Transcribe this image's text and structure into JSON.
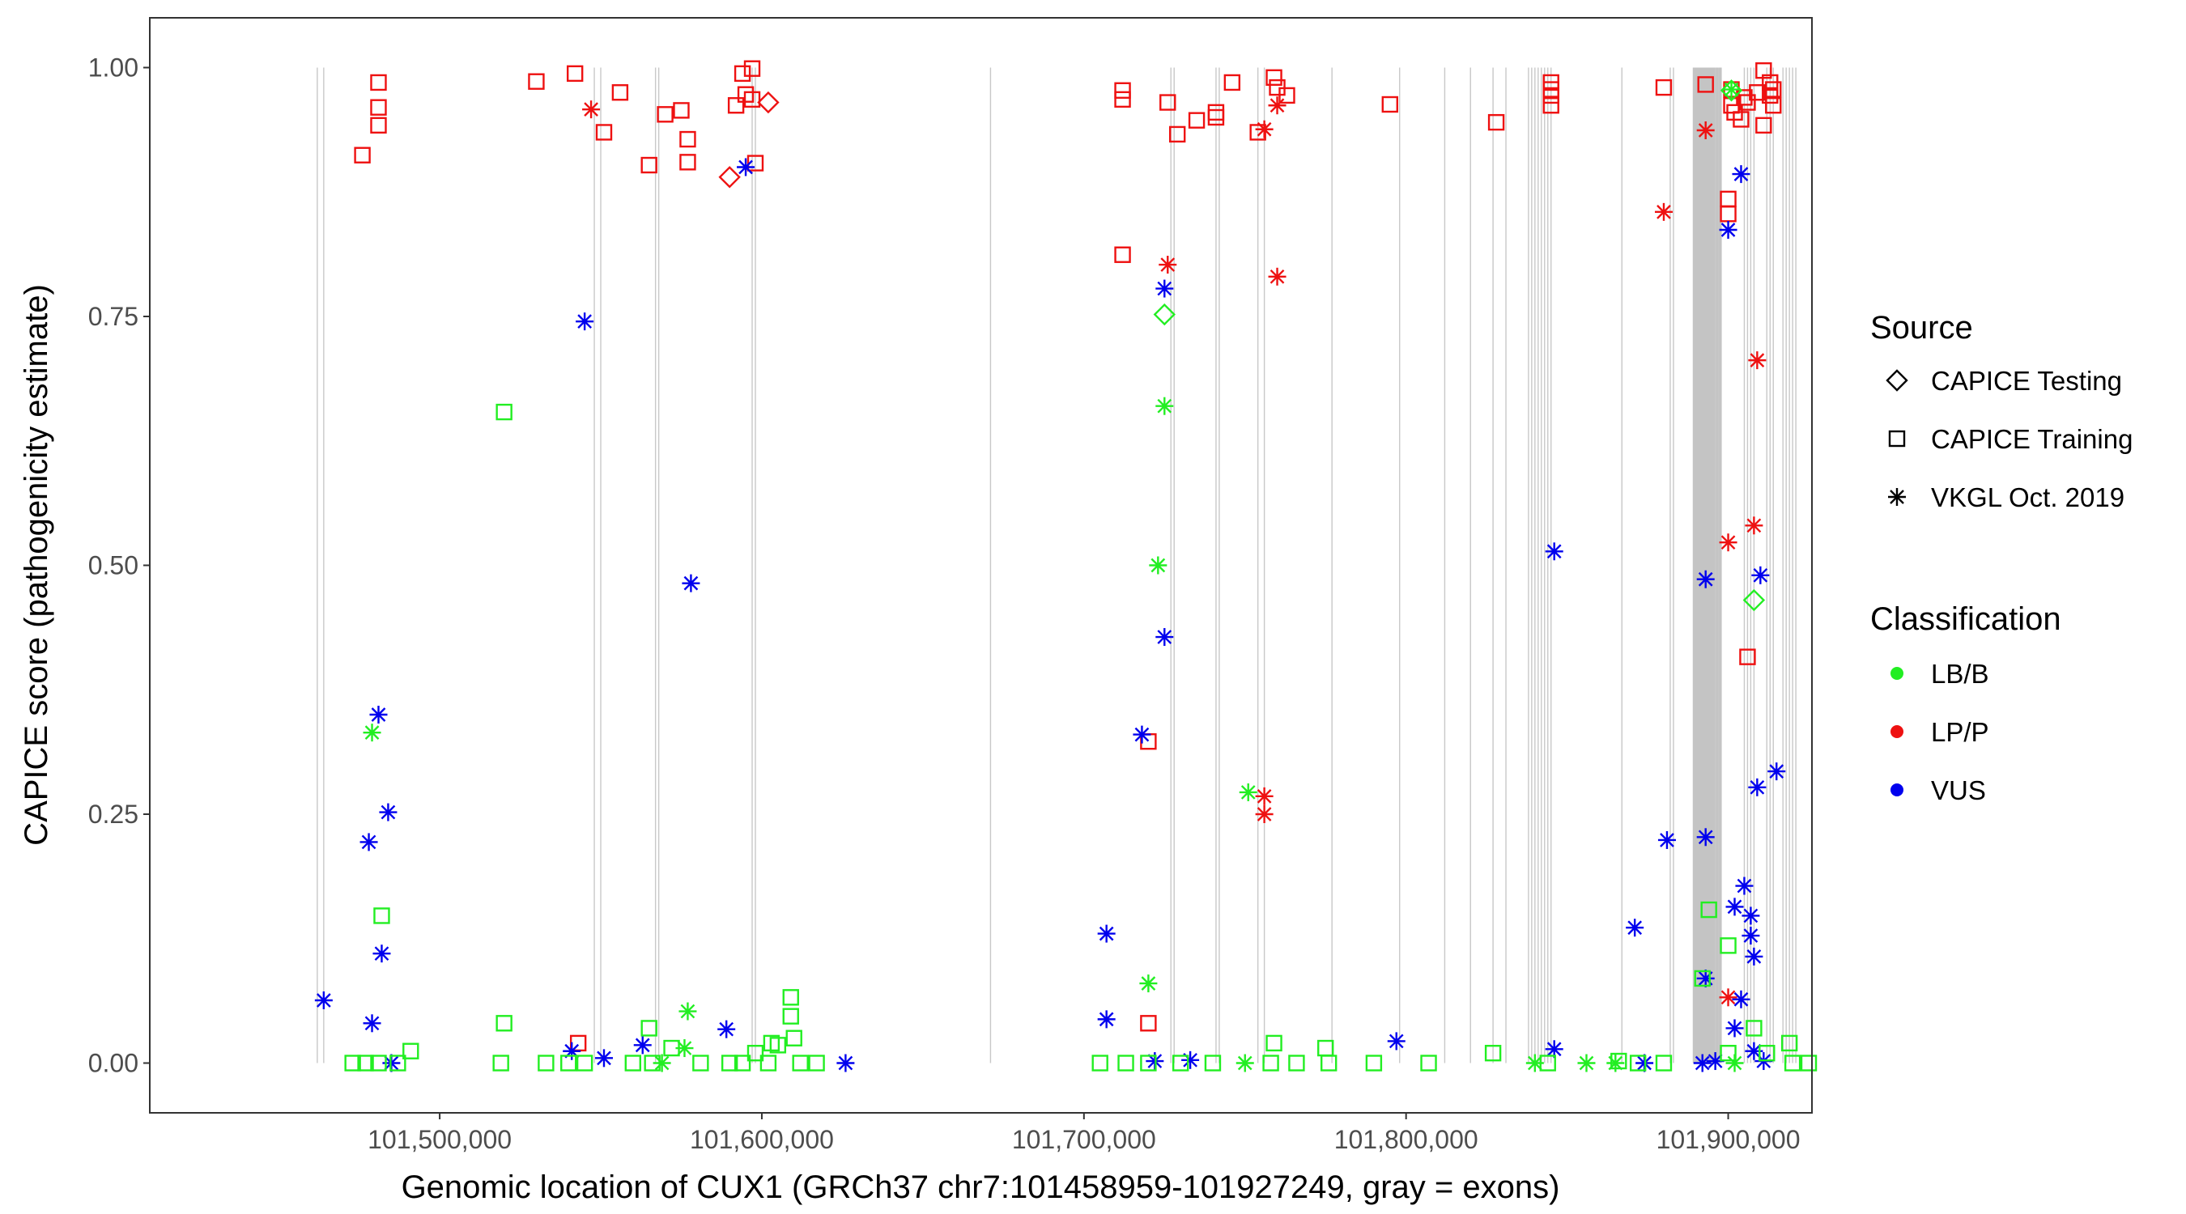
{
  "chart_data": {
    "type": "scatter",
    "title": "",
    "xlabel": "Genomic location of CUX1 (GRCh37 chr7:101458959-101927249, gray = exons)",
    "ylabel": "CAPICE score (pathogenicity estimate)",
    "xlim": [
      101410000,
      101926000
    ],
    "ylim": [
      -0.05,
      1.05
    ],
    "x_ticks": [
      101500000,
      101600000,
      101700000,
      101800000,
      101900000
    ],
    "x_tick_labels": [
      "101,500,000",
      "101,600,000",
      "101,700,000",
      "101,800,000",
      "101,900,000"
    ],
    "y_ticks": [
      0,
      0.25,
      0.5,
      0.75,
      1
    ],
    "y_tick_labels": [
      "0.00",
      "0.25",
      "0.50",
      "0.75",
      "1.00"
    ],
    "grid": false,
    "legend_position": "right",
    "colors": {
      "LB/B": "#22ee22",
      "LP/P": "#ee1111",
      "VUS": "#0000ee",
      "exon": "#c8c8c8",
      "exon_block": "#c4c4c4"
    },
    "exon_lines": [
      101462000,
      101464000,
      101548000,
      101550000,
      101567000,
      101568000,
      101597000,
      101598000,
      101671000,
      101727000,
      101728000,
      101741000,
      101742000,
      101754000,
      101756000,
      101777000,
      101798000,
      101812000,
      101820000,
      101827000,
      101831000,
      101838000,
      101839000,
      101840000,
      101841000,
      101842000,
      101843000,
      101844000,
      101845000,
      101867000,
      101882000,
      101883000,
      101896000,
      101897000,
      101905000,
      101906000,
      101907000,
      101908000,
      101912000,
      101913000,
      101914000,
      101917000,
      101918000,
      101919000,
      101920000,
      101921000
    ],
    "exon_block": [
      101889000,
      101898000
    ],
    "legends": [
      {
        "title": "Source",
        "entries": [
          {
            "label": "CAPICE Testing",
            "shape": "diamond"
          },
          {
            "label": "CAPICE Training",
            "shape": "square"
          },
          {
            "label": "VKGL Oct. 2019",
            "shape": "asterisk"
          }
        ]
      },
      {
        "title": "Classification",
        "entries": [
          {
            "label": "LB/B",
            "color": "#22ee22"
          },
          {
            "label": "LP/P",
            "color": "#ee1111"
          },
          {
            "label": "VUS",
            "color": "#0000ee"
          }
        ]
      }
    ],
    "series": [
      {
        "source": "CAPICE Training",
        "class": "LP/P",
        "points": [
          [
            101476000,
            0.912
          ],
          [
            101481000,
            0.985
          ],
          [
            101481000,
            0.96
          ],
          [
            101481000,
            0.942
          ],
          [
            101530000,
            0.986
          ],
          [
            101542000,
            0.994
          ],
          [
            101551000,
            0.935
          ],
          [
            101556000,
            0.975
          ],
          [
            101565000,
            0.902
          ],
          [
            101570000,
            0.953
          ],
          [
            101575000,
            0.957
          ],
          [
            101577000,
            0.928
          ],
          [
            101577000,
            0.905
          ],
          [
            101592000,
            0.962
          ],
          [
            101594000,
            0.994
          ],
          [
            101597000,
            0.999
          ],
          [
            101597000,
            0.968
          ],
          [
            101595000,
            0.973
          ],
          [
            101598000,
            0.904
          ],
          [
            101543000,
            0.02
          ],
          [
            101712000,
            0.977
          ],
          [
            101712000,
            0.968
          ],
          [
            101712000,
            0.812
          ],
          [
            101726000,
            0.965
          ],
          [
            101729000,
            0.933
          ],
          [
            101735000,
            0.947
          ],
          [
            101741000,
            0.955
          ],
          [
            101741000,
            0.95
          ],
          [
            101746000,
            0.985
          ],
          [
            101754000,
            0.935
          ],
          [
            101759000,
            0.99
          ],
          [
            101760000,
            0.98
          ],
          [
            101763000,
            0.972
          ],
          [
            101795000,
            0.963
          ],
          [
            101828000,
            0.945
          ],
          [
            101845000,
            0.985
          ],
          [
            101845000,
            0.978
          ],
          [
            101845000,
            0.972
          ],
          [
            101845000,
            0.962
          ],
          [
            101880000,
            0.98
          ],
          [
            101893000,
            0.983
          ],
          [
            101900000,
            0.868
          ],
          [
            101900000,
            0.853
          ],
          [
            101901000,
            0.978
          ],
          [
            101901000,
            0.962
          ],
          [
            101902000,
            0.955
          ],
          [
            101904000,
            0.948
          ],
          [
            101905000,
            0.97
          ],
          [
            101906000,
            0.965
          ],
          [
            101909000,
            0.975
          ],
          [
            101911000,
            0.942
          ],
          [
            101911000,
            0.997
          ],
          [
            101913000,
            0.985
          ],
          [
            101913000,
            0.972
          ],
          [
            101914000,
            0.962
          ],
          [
            101914000,
            0.978
          ],
          [
            101906000,
            0.408
          ],
          [
            101720000,
            0.323
          ],
          [
            101720000,
            0.04
          ]
        ]
      },
      {
        "source": "VKGL Oct. 2019",
        "class": "LP/P",
        "points": [
          [
            101547000,
            0.958
          ],
          [
            101726000,
            0.802
          ],
          [
            101756000,
            0.938
          ],
          [
            101760000,
            0.962
          ],
          [
            101760000,
            0.79
          ],
          [
            101756000,
            0.268
          ],
          [
            101756000,
            0.25
          ],
          [
            101880000,
            0.855
          ],
          [
            101893000,
            0.937
          ],
          [
            101909000,
            0.706
          ],
          [
            101908000,
            0.54
          ],
          [
            101900000,
            0.523
          ],
          [
            101900000,
            0.066
          ]
        ]
      },
      {
        "source": "CAPICE Testing",
        "class": "LP/P",
        "points": [
          [
            101590000,
            0.89
          ],
          [
            101602000,
            0.965
          ]
        ]
      },
      {
        "source": "VKGL Oct. 2019",
        "class": "VUS",
        "points": [
          [
            101595000,
            0.9
          ],
          [
            101545000,
            0.745
          ],
          [
            101578000,
            0.482
          ],
          [
            101481000,
            0.35
          ],
          [
            101484000,
            0.252
          ],
          [
            101478000,
            0.222
          ],
          [
            101482000,
            0.11
          ],
          [
            101464000,
            0.063
          ],
          [
            101479000,
            0.04
          ],
          [
            101485000,
            0.0
          ],
          [
            101541000,
            0.012
          ],
          [
            101551000,
            0.005
          ],
          [
            101563000,
            0.018
          ],
          [
            101589000,
            0.034
          ],
          [
            101626000,
            0.0
          ],
          [
            101725000,
            0.778
          ],
          [
            101725000,
            0.428
          ],
          [
            101718000,
            0.33
          ],
          [
            101707000,
            0.13
          ],
          [
            101707000,
            0.044
          ],
          [
            101722000,
            0.002
          ],
          [
            101733000,
            0.003
          ],
          [
            101797000,
            0.022
          ],
          [
            101846000,
            0.514
          ],
          [
            101846000,
            0.014
          ],
          [
            101871000,
            0.136
          ],
          [
            101881000,
            0.224
          ],
          [
            101893000,
            0.227
          ],
          [
            101893000,
            0.486
          ],
          [
            101893000,
            0.085
          ],
          [
            101900000,
            0.837
          ],
          [
            101904000,
            0.893
          ],
          [
            101910000,
            0.49
          ],
          [
            101915000,
            0.293
          ],
          [
            101909000,
            0.277
          ],
          [
            101905000,
            0.178
          ],
          [
            101902000,
            0.157
          ],
          [
            101907000,
            0.148
          ],
          [
            101907000,
            0.128
          ],
          [
            101908000,
            0.107
          ],
          [
            101904000,
            0.064
          ],
          [
            101902000,
            0.035
          ],
          [
            101908000,
            0.012
          ],
          [
            101892000,
            0.0
          ],
          [
            101896000,
            0.002
          ],
          [
            101911000,
            0.002
          ],
          [
            101874000,
            0.0
          ]
        ]
      },
      {
        "source": "CAPICE Training",
        "class": "LB/B",
        "points": [
          [
            101520000,
            0.654
          ],
          [
            101482000,
            0.148
          ],
          [
            101520000,
            0.04
          ],
          [
            101565000,
            0.035
          ],
          [
            101572000,
            0.015
          ],
          [
            101609000,
            0.066
          ],
          [
            101609000,
            0.047
          ],
          [
            101610000,
            0.025
          ],
          [
            101603000,
            0.02
          ],
          [
            101605000,
            0.018
          ],
          [
            101598000,
            0.01
          ],
          [
            101473000,
            0.0
          ],
          [
            101477000,
            0.0
          ],
          [
            101481000,
            0.0
          ],
          [
            101487000,
            0.0
          ],
          [
            101491000,
            0.012
          ],
          [
            101519000,
            0.0
          ],
          [
            101533000,
            0.0
          ],
          [
            101540000,
            0.0
          ],
          [
            101545000,
            0.0
          ],
          [
            101560000,
            0.0
          ],
          [
            101566000,
            0.0
          ],
          [
            101581000,
            0.0
          ],
          [
            101590000,
            0.0
          ],
          [
            101594000,
            0.0
          ],
          [
            101602000,
            0.0
          ],
          [
            101612000,
            0.0
          ],
          [
            101617000,
            0.0
          ],
          [
            101705000,
            0.0
          ],
          [
            101713000,
            0.0
          ],
          [
            101720000,
            0.0
          ],
          [
            101730000,
            0.0
          ],
          [
            101740000,
            0.0
          ],
          [
            101758000,
            0.0
          ],
          [
            101766000,
            0.0
          ],
          [
            101776000,
            0.0
          ],
          [
            101790000,
            0.0
          ],
          [
            101807000,
            0.0
          ],
          [
            101827000,
            0.01
          ],
          [
            101844000,
            0.0
          ],
          [
            101866000,
            0.002
          ],
          [
            101872000,
            0.0
          ],
          [
            101880000,
            0.0
          ],
          [
            101894000,
            0.154
          ],
          [
            101900000,
            0.118
          ],
          [
            101892000,
            0.085
          ],
          [
            101908000,
            0.035
          ],
          [
            101919000,
            0.02
          ],
          [
            101900000,
            0.01
          ],
          [
            101912000,
            0.01
          ],
          [
            101920000,
            0.0
          ],
          [
            101925000,
            0.0
          ],
          [
            101759000,
            0.02
          ],
          [
            101775000,
            0.015
          ]
        ]
      },
      {
        "source": "VKGL Oct. 2019",
        "class": "LB/B",
        "points": [
          [
            101479000,
            0.332
          ],
          [
            101577000,
            0.052
          ],
          [
            101576000,
            0.015
          ],
          [
            101569000,
            0.0
          ],
          [
            101723000,
            0.5
          ],
          [
            101725000,
            0.66
          ],
          [
            101720000,
            0.08
          ],
          [
            101751000,
            0.272
          ],
          [
            101750000,
            0.0
          ],
          [
            101840000,
            0.0
          ],
          [
            101856000,
            0.0
          ],
          [
            101865000,
            0.0
          ],
          [
            101901000,
            0.978
          ],
          [
            101902000,
            0.0
          ]
        ]
      },
      {
        "source": "CAPICE Testing",
        "class": "LB/B",
        "points": [
          [
            101725000,
            0.752
          ],
          [
            101908000,
            0.465
          ],
          [
            101901000,
            0.977
          ]
        ]
      }
    ]
  }
}
